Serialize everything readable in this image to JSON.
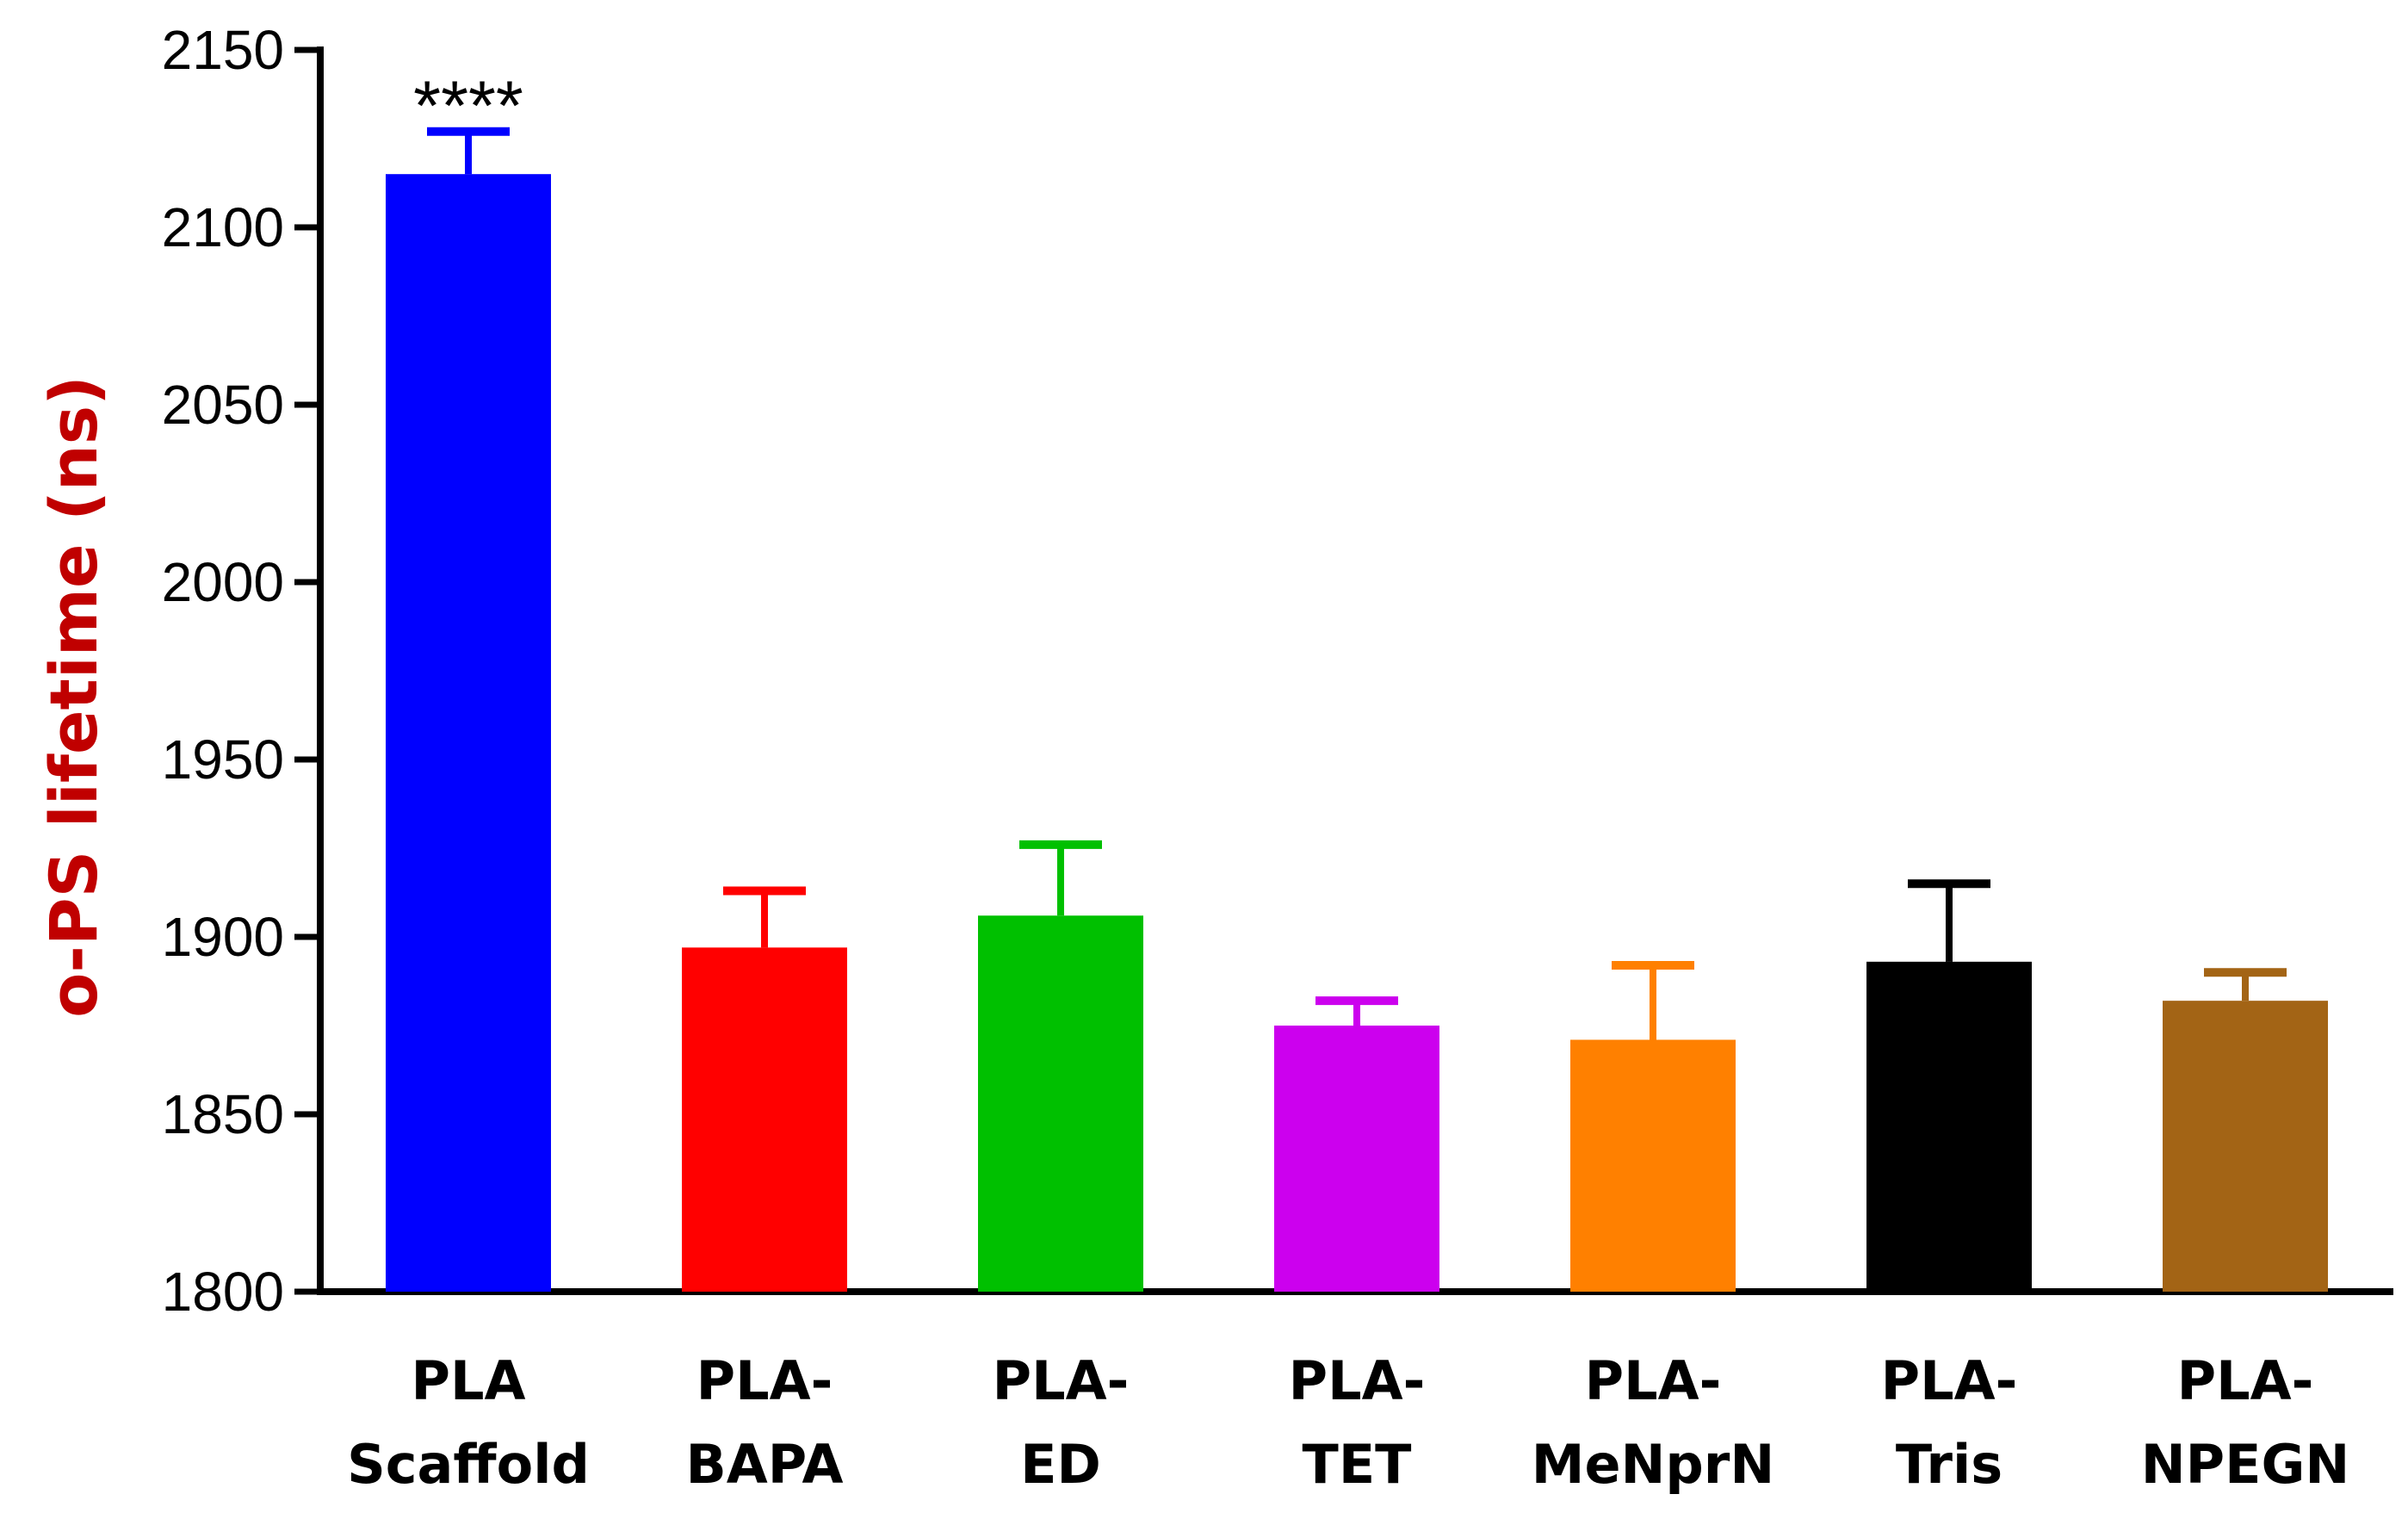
{
  "chart_data": {
    "type": "bar",
    "title": "",
    "xlabel": "",
    "ylabel": "o-PS lifetime (ns)",
    "ylabel_color": "#c00000",
    "ylim": [
      1800,
      2150
    ],
    "yticks": [
      1800,
      1850,
      1900,
      1950,
      2000,
      2050,
      2100,
      2150
    ],
    "yticks_labels": [
      "1800",
      "1850",
      "1900",
      "1950",
      "2000",
      "2050",
      "2100",
      "2150"
    ],
    "grid": false,
    "legend": "none",
    "categories": [
      {
        "line1": "PLA",
        "line2": "Scaffold"
      },
      {
        "line1": "PLA-",
        "line2": "BAPA"
      },
      {
        "line1": "PLA-",
        "line2": "ED"
      },
      {
        "line1": "PLA-",
        "line2": "TET"
      },
      {
        "line1": "PLA-",
        "line2": "MeNprN"
      },
      {
        "line1": "PLA-",
        "line2": "Tris"
      },
      {
        "line1": "PLA-",
        "line2": "NPEGN"
      }
    ],
    "values": [
      2115,
      1897,
      1906,
      1875,
      1871,
      1893,
      1882
    ],
    "errors": [
      12,
      16,
      20,
      7,
      21,
      22,
      8
    ],
    "colors": [
      "#0000ff",
      "#ff0000",
      "#00c000",
      "#cc00ee",
      "#ff8000",
      "#000000",
      "#a36415"
    ],
    "annotations": [
      {
        "category_index": 0,
        "text": "****"
      }
    ]
  }
}
